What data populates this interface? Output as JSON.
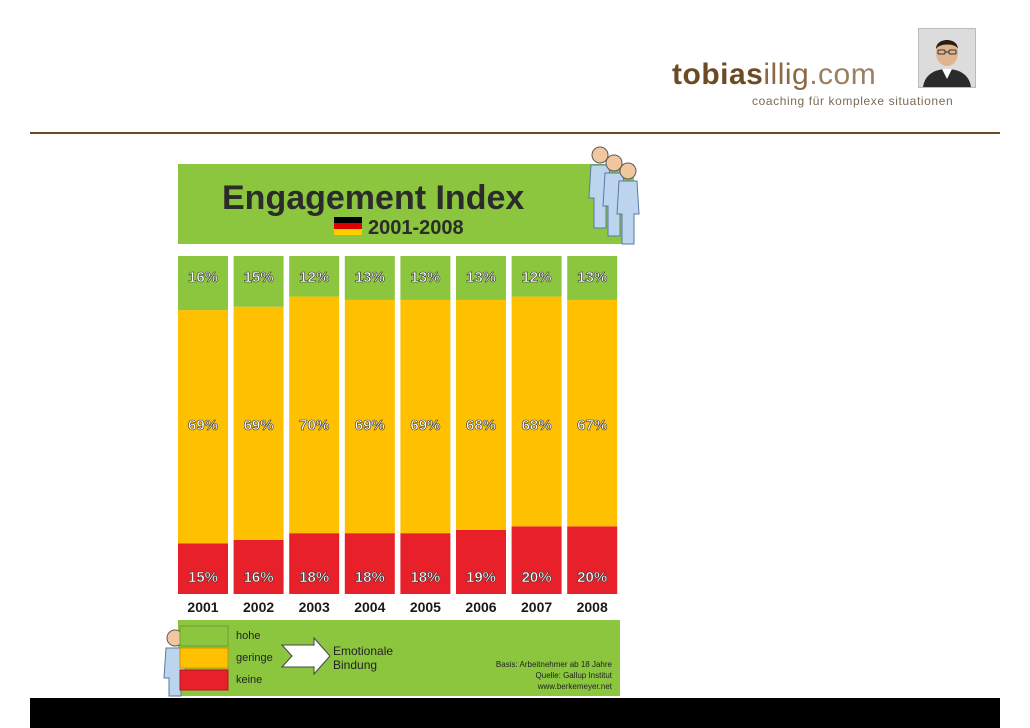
{
  "brand": {
    "part1": "tobias",
    "part2": "illig",
    "part3": ".com",
    "tagline": "coaching für komplexe situationen"
  },
  "chart_data": {
    "type": "bar",
    "stacked": true,
    "title": "Engagement Index",
    "subtitle": "2001-2008",
    "categories": [
      "2001",
      "2002",
      "2003",
      "2004",
      "2005",
      "2006",
      "2007",
      "2008"
    ],
    "series": [
      {
        "name": "keine",
        "color": "#e8202a",
        "values": [
          15,
          16,
          18,
          18,
          18,
          19,
          20,
          20
        ]
      },
      {
        "name": "geringe",
        "color": "#ffc000",
        "values": [
          69,
          69,
          70,
          69,
          69,
          68,
          68,
          67
        ]
      },
      {
        "name": "hohe",
        "color": "#8cc63f",
        "values": [
          16,
          15,
          12,
          13,
          13,
          13,
          12,
          13
        ]
      }
    ],
    "legend": {
      "title": "Emotionale Bindung",
      "items": [
        "hohe",
        "geringe",
        "keine"
      ]
    },
    "notes": [
      "Basis: Arbeitnehmer ab 18 Jahre",
      "Quelle: Gallup Institut",
      "www.berkemeyer.net"
    ]
  }
}
